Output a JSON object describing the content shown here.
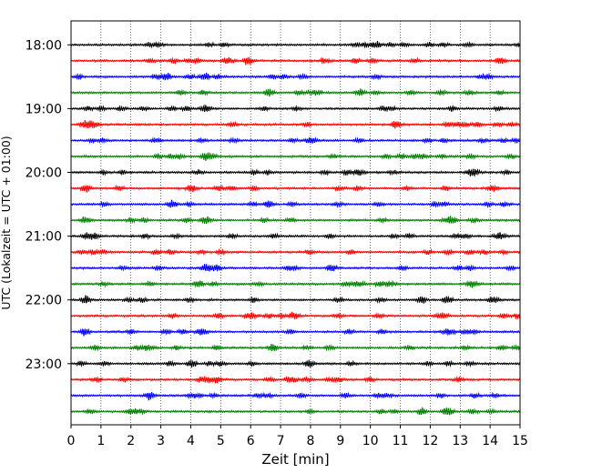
{
  "chart_data": {
    "type": "line",
    "title": "",
    "xlabel": "Zeit  [min]",
    "ylabel": "UTC (Lokalzeit = UTC + 01:00)",
    "xlim": [
      0,
      15
    ],
    "x_ticks": [
      "0",
      "1",
      "2",
      "3",
      "4",
      "5",
      "6",
      "7",
      "8",
      "9",
      "10",
      "11",
      "12",
      "13",
      "14",
      "15"
    ],
    "ylim_minutes": [
      1057.5,
      1437.5
    ],
    "y_ticks": [
      {
        "label": "18:00",
        "minutes": 1080
      },
      {
        "label": "19:00",
        "minutes": 1140
      },
      {
        "label": "20:00",
        "minutes": 1200
      },
      {
        "label": "21:00",
        "minutes": 1260
      },
      {
        "label": "22:00",
        "minutes": 1320
      },
      {
        "label": "23:00",
        "minutes": 1380
      }
    ],
    "grid_x": true,
    "trace_interval_minutes": 15,
    "trace_colors": [
      "#000000",
      "#ff0000",
      "#0000ff",
      "#008000"
    ],
    "traces": [
      {
        "start": "18:00",
        "minutes": 1080
      },
      {
        "start": "18:15",
        "minutes": 1095
      },
      {
        "start": "18:30",
        "minutes": 1110
      },
      {
        "start": "18:45",
        "minutes": 1125
      },
      {
        "start": "19:00",
        "minutes": 1140
      },
      {
        "start": "19:15",
        "minutes": 1155
      },
      {
        "start": "19:30",
        "minutes": 1170
      },
      {
        "start": "19:45",
        "minutes": 1185
      },
      {
        "start": "20:00",
        "minutes": 1200
      },
      {
        "start": "20:15",
        "minutes": 1215
      },
      {
        "start": "20:30",
        "minutes": 1230
      },
      {
        "start": "20:45",
        "minutes": 1245
      },
      {
        "start": "21:00",
        "minutes": 1260
      },
      {
        "start": "21:15",
        "minutes": 1275
      },
      {
        "start": "21:30",
        "minutes": 1290
      },
      {
        "start": "21:45",
        "minutes": 1305
      },
      {
        "start": "22:00",
        "minutes": 1320
      },
      {
        "start": "22:15",
        "minutes": 1335
      },
      {
        "start": "22:30",
        "minutes": 1350
      },
      {
        "start": "22:45",
        "minutes": 1365
      },
      {
        "start": "23:00",
        "minutes": 1380
      },
      {
        "start": "23:15",
        "minutes": 1395
      },
      {
        "start": "23:30",
        "minutes": 1410
      },
      {
        "start": "23:45",
        "minutes": 1425
      }
    ]
  }
}
